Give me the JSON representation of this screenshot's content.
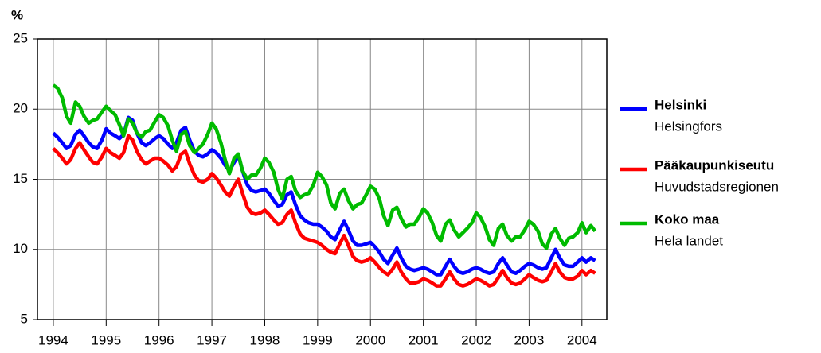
{
  "chart_data": {
    "type": "line",
    "y_label": "%",
    "xlim": [
      1993.7,
      2004.47
    ],
    "xticks": [
      1994,
      1995,
      1996,
      1997,
      1998,
      1999,
      2000,
      2001,
      2002,
      2003,
      2004
    ],
    "ylim": [
      5,
      25
    ],
    "yticks": [
      5,
      10,
      15,
      20,
      25
    ],
    "grid": true,
    "legend": "right",
    "x": [
      1994.0,
      1994.08,
      1994.17,
      1994.25,
      1994.33,
      1994.42,
      1994.5,
      1994.58,
      1994.67,
      1994.75,
      1994.83,
      1994.92,
      1995.0,
      1995.08,
      1995.17,
      1995.25,
      1995.33,
      1995.42,
      1995.5,
      1995.58,
      1995.67,
      1995.75,
      1995.83,
      1995.92,
      1996.0,
      1996.08,
      1996.17,
      1996.25,
      1996.33,
      1996.42,
      1996.5,
      1996.58,
      1996.67,
      1996.75,
      1996.83,
      1996.92,
      1997.0,
      1997.08,
      1997.17,
      1997.25,
      1997.33,
      1997.42,
      1997.5,
      1997.58,
      1997.67,
      1997.75,
      1997.83,
      1997.92,
      1998.0,
      1998.08,
      1998.17,
      1998.25,
      1998.33,
      1998.42,
      1998.5,
      1998.58,
      1998.67,
      1998.75,
      1998.83,
      1998.92,
      1999.0,
      1999.08,
      1999.17,
      1999.25,
      1999.33,
      1999.42,
      1999.5,
      1999.58,
      1999.67,
      1999.75,
      1999.83,
      1999.92,
      2000.0,
      2000.08,
      2000.17,
      2000.25,
      2000.33,
      2000.42,
      2000.5,
      2000.58,
      2000.67,
      2000.75,
      2000.83,
      2000.92,
      2001.0,
      2001.08,
      2001.17,
      2001.25,
      2001.33,
      2001.42,
      2001.5,
      2001.58,
      2001.67,
      2001.75,
      2001.83,
      2001.92,
      2002.0,
      2002.08,
      2002.17,
      2002.25,
      2002.33,
      2002.42,
      2002.5,
      2002.58,
      2002.67,
      2002.75,
      2002.83,
      2002.92,
      2003.0,
      2003.08,
      2003.17,
      2003.25,
      2003.33,
      2003.42,
      2003.5,
      2003.58,
      2003.67,
      2003.75,
      2003.83,
      2003.92,
      2004.0,
      2004.08,
      2004.17,
      2004.25
    ],
    "series": [
      {
        "name": "Helsinki",
        "name_alt": "Helsingfors",
        "color": "#0000ff",
        "values": [
          18.3,
          18.0,
          17.6,
          17.2,
          17.4,
          18.2,
          18.5,
          18.1,
          17.6,
          17.3,
          17.2,
          17.8,
          18.6,
          18.3,
          18.1,
          17.9,
          18.2,
          19.4,
          19.2,
          18.3,
          17.6,
          17.4,
          17.6,
          17.9,
          18.1,
          17.9,
          17.5,
          17.2,
          17.6,
          18.5,
          18.7,
          17.8,
          17.0,
          16.7,
          16.6,
          16.8,
          17.1,
          16.9,
          16.5,
          16.0,
          15.6,
          16.2,
          16.7,
          15.6,
          14.6,
          14.2,
          14.1,
          14.2,
          14.3,
          14.0,
          13.5,
          13.1,
          13.2,
          13.9,
          14.1,
          13.2,
          12.4,
          12.1,
          11.9,
          11.8,
          11.8,
          11.6,
          11.3,
          10.9,
          10.7,
          11.4,
          12.0,
          11.4,
          10.6,
          10.3,
          10.3,
          10.4,
          10.5,
          10.2,
          9.8,
          9.3,
          9.0,
          9.6,
          10.1,
          9.4,
          8.8,
          8.6,
          8.5,
          8.6,
          8.7,
          8.6,
          8.4,
          8.2,
          8.2,
          8.8,
          9.3,
          8.8,
          8.4,
          8.3,
          8.4,
          8.6,
          8.7,
          8.6,
          8.4,
          8.3,
          8.4,
          9.0,
          9.4,
          8.9,
          8.4,
          8.3,
          8.5,
          8.8,
          9.0,
          8.9,
          8.7,
          8.6,
          8.7,
          9.4,
          10.0,
          9.4,
          8.9,
          8.8,
          8.8,
          9.1,
          9.4,
          9.1,
          9.4,
          9.2
        ]
      },
      {
        "name": "Pääkaupunkiseutu",
        "name_alt": "Huvudstadsregionen",
        "color": "#ff0000",
        "values": [
          17.2,
          16.9,
          16.5,
          16.1,
          16.4,
          17.2,
          17.6,
          17.1,
          16.6,
          16.2,
          16.1,
          16.6,
          17.2,
          16.9,
          16.7,
          16.5,
          16.9,
          18.1,
          17.8,
          17.0,
          16.4,
          16.1,
          16.3,
          16.5,
          16.5,
          16.3,
          16.0,
          15.6,
          15.9,
          16.8,
          17.0,
          16.1,
          15.3,
          14.9,
          14.8,
          15.0,
          15.4,
          15.1,
          14.6,
          14.1,
          13.8,
          14.5,
          15.0,
          14.0,
          13.0,
          12.6,
          12.5,
          12.6,
          12.8,
          12.5,
          12.1,
          11.8,
          11.9,
          12.5,
          12.8,
          11.9,
          11.1,
          10.8,
          10.7,
          10.6,
          10.5,
          10.3,
          10.0,
          9.8,
          9.7,
          10.4,
          11.0,
          10.3,
          9.5,
          9.2,
          9.1,
          9.2,
          9.4,
          9.1,
          8.7,
          8.4,
          8.2,
          8.6,
          9.1,
          8.4,
          7.9,
          7.6,
          7.6,
          7.7,
          7.9,
          7.8,
          7.6,
          7.4,
          7.4,
          7.9,
          8.4,
          7.9,
          7.5,
          7.4,
          7.5,
          7.7,
          7.9,
          7.8,
          7.6,
          7.4,
          7.5,
          8.0,
          8.5,
          8.0,
          7.6,
          7.5,
          7.6,
          7.9,
          8.2,
          8.0,
          7.8,
          7.7,
          7.8,
          8.4,
          9.0,
          8.4,
          8.0,
          7.9,
          7.9,
          8.1,
          8.5,
          8.2,
          8.5,
          8.3
        ]
      },
      {
        "name": "Koko maa",
        "name_alt": "Hela landet",
        "color": "#00bb00",
        "values": [
          21.7,
          21.5,
          20.8,
          19.5,
          19.0,
          20.5,
          20.2,
          19.5,
          19.0,
          19.2,
          19.3,
          19.8,
          20.2,
          19.9,
          19.6,
          18.9,
          18.1,
          19.3,
          19.0,
          18.3,
          18.0,
          18.4,
          18.5,
          19.1,
          19.6,
          19.4,
          18.8,
          17.8,
          17.0,
          18.2,
          18.4,
          17.4,
          16.9,
          17.2,
          17.5,
          18.2,
          19.0,
          18.6,
          17.6,
          16.4,
          15.4,
          16.5,
          16.8,
          15.6,
          15.0,
          15.3,
          15.3,
          15.8,
          16.5,
          16.2,
          15.5,
          14.3,
          13.6,
          15.0,
          15.2,
          14.2,
          13.7,
          13.9,
          14.0,
          14.6,
          15.5,
          15.2,
          14.6,
          13.3,
          12.9,
          14.0,
          14.3,
          13.5,
          12.9,
          13.2,
          13.3,
          13.9,
          14.5,
          14.3,
          13.6,
          12.4,
          11.7,
          12.8,
          13.0,
          12.2,
          11.6,
          11.8,
          11.8,
          12.3,
          12.9,
          12.6,
          11.9,
          11.0,
          10.6,
          11.8,
          12.1,
          11.4,
          10.9,
          11.2,
          11.5,
          11.9,
          12.6,
          12.3,
          11.6,
          10.7,
          10.3,
          11.5,
          11.8,
          11.0,
          10.6,
          10.9,
          10.9,
          11.4,
          12.0,
          11.8,
          11.3,
          10.4,
          10.1,
          11.1,
          11.5,
          10.8,
          10.3,
          10.8,
          10.9,
          11.2,
          11.9,
          11.2,
          11.7,
          11.3
        ]
      }
    ]
  }
}
